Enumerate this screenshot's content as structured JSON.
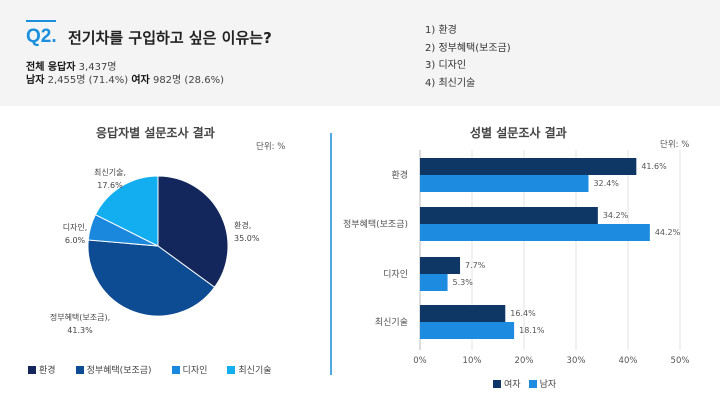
{
  "header": {
    "question_number": "Q2.",
    "question_text": "전기차를 구입하고 싶은 이유는?",
    "total_label": "전체 응답자",
    "total_value": "3,437명",
    "male_label": "남자",
    "male_value": "2,455명 (71.4%)",
    "female_label": "여자",
    "female_value": "982명 (28.6%)",
    "options": [
      "1) 환경",
      "2) 정부혜택(보조금)",
      "3) 디자인",
      "4) 최신기술"
    ]
  },
  "colors": {
    "env": "#14275c",
    "gov": "#0d4c92",
    "design": "#1a88dd",
    "tech": "#12aef0",
    "male": "#0f3766",
    "female": "#1d8be0"
  },
  "chart_data": [
    {
      "type": "pie",
      "title": "응답자별 설문조사 결과",
      "unit": "단위: %",
      "categories": [
        "환경",
        "정부혜택(보조금)",
        "디자인",
        "최신기술"
      ],
      "slice_labels": [
        "환경,",
        "정부혜택(보조금),",
        "디자인,",
        "최신기술,"
      ],
      "value_labels": [
        "35.0%",
        "41.3%",
        "6.0%",
        "17.6%"
      ],
      "values": [
        35.0,
        41.3,
        6.0,
        17.6
      ],
      "legend": [
        "환경",
        "정부혜택(보조금)",
        "디자인",
        "최신기술"
      ],
      "legend_position": "bottom"
    },
    {
      "type": "bar",
      "orientation": "horizontal",
      "title": "성별 설문조사 결과",
      "unit": "단위: %",
      "categories": [
        "환경",
        "정부혜택(보조금)",
        "디자인",
        "최신기술"
      ],
      "series": [
        {
          "name": "여자",
          "values": [
            41.6,
            34.2,
            7.7,
            16.4
          ],
          "labels": [
            "41.6%",
            "34.2%",
            "7.7%",
            "16.4%"
          ]
        },
        {
          "name": "남자",
          "values": [
            32.4,
            44.2,
            5.3,
            18.1
          ],
          "labels": [
            "32.4%",
            "44.2%",
            "5.3%",
            "18.1%"
          ]
        }
      ],
      "xlim": [
        0,
        50
      ],
      "xticks": [
        "0%",
        "10%",
        "20%",
        "30%",
        "40%",
        "50%"
      ],
      "grid": true,
      "legend_position": "bottom"
    }
  ]
}
